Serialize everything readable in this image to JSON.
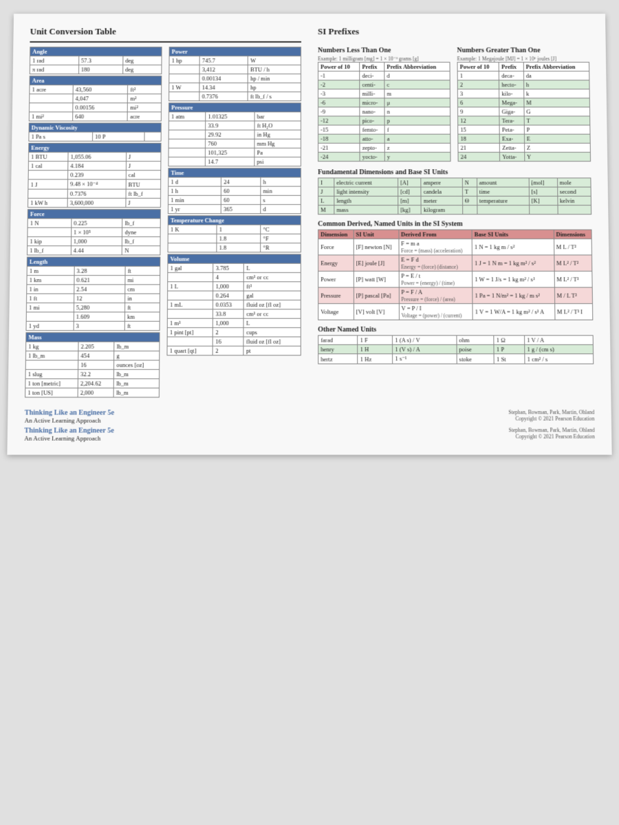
{
  "title_left": "Unit Conversion Table",
  "title_right": "SI Prefixes",
  "sub_less": "Numbers Less Than One",
  "sub_less_ex": "Example: 1 milligram [mg] = 1 × 10⁻³ grams [g]",
  "sub_more": "Numbers Greater Than One",
  "sub_more_ex": "Example: 1 Megajoule [MJ] = 1 × 10⁶ joules [J]",
  "prefix_head": [
    "Power of 10",
    "Prefix",
    "Prefix Abbreviation"
  ],
  "angle": {
    "head": "Angle",
    "rows": [
      [
        "1 rad",
        "57.3",
        "deg"
      ],
      [
        "π rad",
        "180",
        "deg"
      ]
    ]
  },
  "area": {
    "head": "Area",
    "rows": [
      [
        "1 acre",
        "43,560",
        "ft²"
      ],
      [
        "",
        "4,047",
        "m²"
      ],
      [
        "",
        "0.00156",
        "mi²"
      ],
      [
        "1 mi²",
        "640",
        "acre"
      ]
    ]
  },
  "dyn": {
    "head": "Dynamic Viscosity",
    "rows": [
      [
        "1 Pa s",
        "10 P",
        ""
      ]
    ]
  },
  "energy": {
    "head": "Energy",
    "rows": [
      [
        "1 BTU",
        "1,055.06",
        "J"
      ],
      [
        "1 cal",
        "4.184",
        "J"
      ],
      [
        "",
        "0.239",
        "cal"
      ],
      [
        "1 J",
        "9.48 × 10⁻⁴",
        "BTU"
      ],
      [
        "",
        "0.7376",
        "ft lb_f"
      ],
      [
        "1 kW h",
        "3,600,000",
        "J"
      ]
    ]
  },
  "force": {
    "head": "Force",
    "rows": [
      [
        "1 N",
        "0.225",
        "lb_f"
      ],
      [
        "",
        "1 × 10⁵",
        "dyne"
      ],
      [
        "1 kip",
        "1,000",
        "lb_f"
      ],
      [
        "1 lb_f",
        "4.44",
        "N"
      ]
    ]
  },
  "length": {
    "head": "Length",
    "rows": [
      [
        "1 m",
        "3.28",
        "ft"
      ],
      [
        "1 km",
        "0.621",
        "mi"
      ],
      [
        "1 in",
        "2.54",
        "cm"
      ],
      [
        "1 ft",
        "12",
        "in"
      ],
      [
        "1 mi",
        "5,280",
        "ft"
      ],
      [
        "",
        "1.609",
        "km"
      ],
      [
        "1 yd",
        "3",
        "ft"
      ]
    ]
  },
  "mass": {
    "head": "Mass",
    "rows": [
      [
        "1 kg",
        "2.205",
        "lb_m"
      ],
      [
        "1 lb_m",
        "454",
        "g"
      ],
      [
        "",
        "16",
        "ounces [oz]"
      ],
      [
        "1 slug",
        "32.2",
        "lb_m"
      ],
      [
        "1 ton [metric]",
        "2,204.62",
        "lb_m"
      ],
      [
        "1 ton [US]",
        "2,000",
        "lb_m"
      ]
    ]
  },
  "power": {
    "head": "Power",
    "rows": [
      [
        "1 hp",
        "745.7",
        "W"
      ],
      [
        "",
        "3,412",
        "BTU / h"
      ],
      [
        "",
        "0.00134",
        "hp / min"
      ],
      [
        "1 W",
        "14.34",
        "hp"
      ],
      [
        "",
        "0.7376",
        "ft lb_f / s"
      ]
    ]
  },
  "pressure": {
    "head": "Pressure",
    "rows": [
      [
        "1 atm",
        "1.01325",
        "bar"
      ],
      [
        "",
        "33.9",
        "ft H₂O"
      ],
      [
        "",
        "29.92",
        "in Hg"
      ],
      [
        "",
        "760",
        "mm Hg"
      ],
      [
        "",
        "101,325",
        "Pa"
      ],
      [
        "",
        "14.7",
        "psi"
      ]
    ]
  },
  "time": {
    "head": "Time",
    "rows": [
      [
        "1 d",
        "24",
        "h"
      ],
      [
        "1 h",
        "60",
        "min"
      ],
      [
        "1 min",
        "60",
        "s"
      ],
      [
        "1 yr",
        "365",
        "d"
      ]
    ]
  },
  "temp": {
    "head": "Temperature Change",
    "rows": [
      [
        "1 K",
        "1",
        "°C"
      ],
      [
        "",
        "1.8",
        "°F"
      ],
      [
        "",
        "1.8",
        "°R"
      ]
    ]
  },
  "volume": {
    "head": "Volume",
    "rows": [
      [
        "1 gal",
        "3.785",
        "L"
      ],
      [
        "",
        "4",
        "cm³ or cc"
      ],
      [
        "1 L",
        "1,000",
        "ft³"
      ],
      [
        "",
        "0.264",
        "gal"
      ],
      [
        "1 mL",
        "0.0353",
        "fluid oz [fl oz]"
      ],
      [
        "",
        "33.8",
        "cm³ or cc"
      ],
      [
        "1 m³",
        "1,000",
        "L"
      ],
      [
        "1 pint [pt]",
        "2",
        "cups"
      ],
      [
        "",
        "16",
        "fluid oz [fl oz]"
      ],
      [
        "1 quart [qt]",
        "2",
        "pt"
      ]
    ]
  },
  "prefix_less": [
    [
      "-1",
      "deci-",
      "d"
    ],
    [
      "-2",
      "centi-",
      "c"
    ],
    [
      "-3",
      "milli-",
      "m"
    ],
    [
      "-6",
      "micro-",
      "μ"
    ],
    [
      "-9",
      "nano-",
      "n"
    ],
    [
      "-12",
      "pico-",
      "p"
    ],
    [
      "-15",
      "femto-",
      "f"
    ],
    [
      "-18",
      "atto-",
      "a"
    ],
    [
      "-21",
      "zepto-",
      "z"
    ],
    [
      "-24",
      "yocto-",
      "y"
    ]
  ],
  "prefix_more": [
    [
      "1",
      "deca-",
      "da"
    ],
    [
      "2",
      "hecto-",
      "h"
    ],
    [
      "3",
      "kilo-",
      "k"
    ],
    [
      "6",
      "Mega-",
      "M"
    ],
    [
      "9",
      "Giga-",
      "G"
    ],
    [
      "12",
      "Tera-",
      "T"
    ],
    [
      "15",
      "Peta-",
      "P"
    ],
    [
      "18",
      "Exa-",
      "E"
    ],
    [
      "21",
      "Zetta-",
      "Z"
    ],
    [
      "24",
      "Yotta-",
      "Y"
    ]
  ],
  "fund_title": "Fundamental Dimensions and Base SI Units",
  "fund_rows": [
    [
      "I",
      "electric current",
      "[A]",
      "ampere",
      "N",
      "amount",
      "[mol]",
      "mole"
    ],
    [
      "J",
      "light intensity",
      "[cd]",
      "candela",
      "T",
      "time",
      "[s]",
      "second"
    ],
    [
      "L",
      "length",
      "[m]",
      "meter",
      "Θ",
      "temperature",
      "[K]",
      "kelvin"
    ],
    [
      "M",
      "mass",
      "[kg]",
      "kilogram",
      "",
      "",
      "",
      ""
    ]
  ],
  "derived_title": "Common Derived, Named Units in the SI System",
  "derived_head": [
    "Dimension",
    "SI Unit",
    "Derived From",
    "Base SI Units",
    "Dimensions"
  ],
  "derived_rows": [
    [
      "Force",
      "[F]",
      "newton",
      "[N]",
      "F = m a",
      "Force = (mass) (acceleration)",
      "1 N = 1 kg m / s²",
      "M L / T²"
    ],
    [
      "Energy",
      "[E]",
      "joule",
      "[J]",
      "E = F d",
      "Energy = (force) (distance)",
      "1 J = 1 N m = 1 kg m² / s²",
      "M L² / T²"
    ],
    [
      "Power",
      "[P]",
      "watt",
      "[W]",
      "P = E / t",
      "Power = (energy) / (time)",
      "1 W = 1 J/s = 1 kg m² / s³",
      "M L² / T³"
    ],
    [
      "Pressure",
      "[P]",
      "pascal",
      "[Pa]",
      "P = F / A",
      "Pressure = (force) / (area)",
      "1 Pa = 1 N/m² = 1 kg / m s²",
      "M / L T²"
    ],
    [
      "Voltage",
      "[V]",
      "volt",
      "[V]",
      "V = P / I",
      "Voltage = (power) / (current)",
      "1 V = 1 W/A = 1 kg m² / s³ A",
      "M L² / T³ I"
    ]
  ],
  "other_title": "Other Named Units",
  "other_rows": [
    [
      "farad",
      "1 F",
      "1 (A s) / V",
      "ohm",
      "1 Ω",
      "1 V / A"
    ],
    [
      "henry",
      "1 H",
      "1 (V s) / A",
      "poise",
      "1 P",
      "1 g / (cm s)"
    ],
    [
      "hertz",
      "1 Hz",
      "1 s⁻¹",
      "stoke",
      "1 St",
      "1 cm² / s"
    ]
  ],
  "footer_title": "Thinking Like an Engineer 5e",
  "footer_sub": "An Active Learning Approach",
  "footer_right1": "Stephan, Bowman, Park, Martin, Ohland",
  "footer_right2": "Copyright © 2021 Pearson Education"
}
